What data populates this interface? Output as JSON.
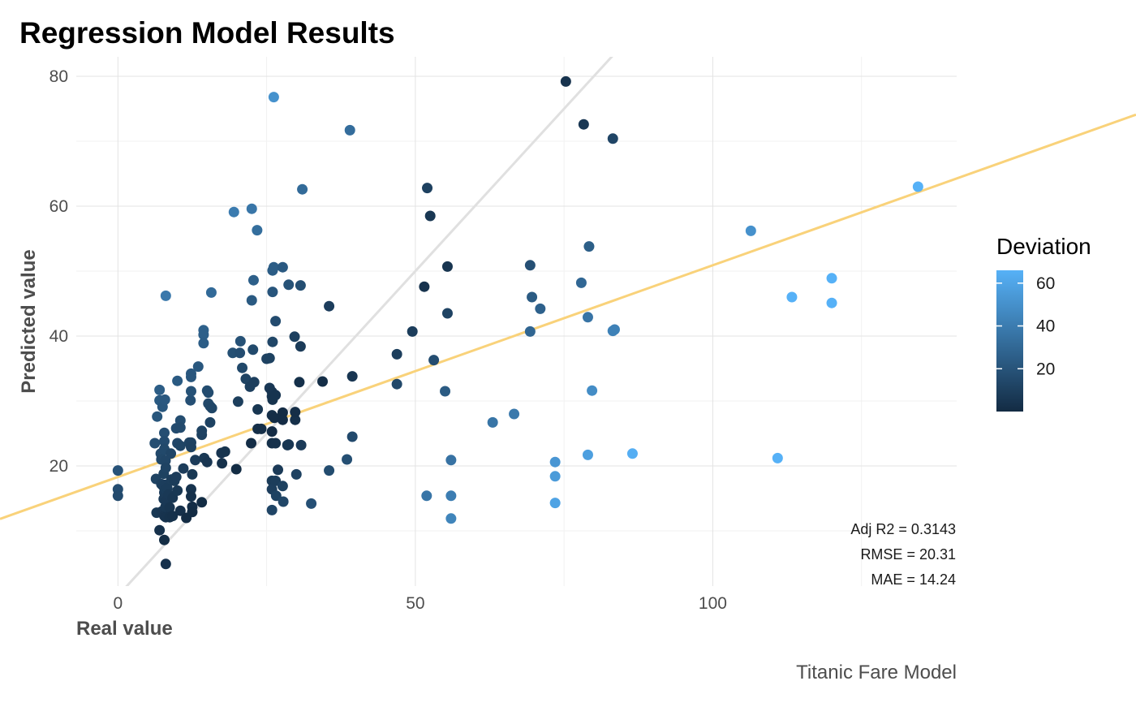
{
  "chart_data": {
    "type": "scatter",
    "title": "Regression Model Results",
    "xlabel": "Real value",
    "ylabel": "Predicted value",
    "caption": "Titanic Fare Model",
    "xlim": [
      -7,
      141
    ],
    "ylim": [
      1.5,
      83
    ],
    "x_ticks": [
      0,
      50,
      100
    ],
    "y_ticks": [
      20,
      40,
      60,
      80
    ],
    "x_tick_labels": [
      "0",
      "50",
      "100"
    ],
    "y_tick_labels": [
      "20",
      "40",
      "60",
      "80"
    ],
    "grid": true,
    "identity_line": {
      "slope": 1,
      "intercept": 0,
      "color": "#e0e0e0"
    },
    "fit_line": {
      "slope": 0.326,
      "intercept": 18.3,
      "color": "#f9d27a"
    },
    "metrics": [
      "Adj R2 =  0.3143",
      "RMSE = 20.31",
      "MAE = 14.24"
    ],
    "legend": {
      "title": "Deviation",
      "position": "right",
      "color_low": "#132b43",
      "color_high": "#56b1f7",
      "range": [
        0,
        66
      ],
      "ticks": [
        20,
        40,
        60
      ],
      "tick_labels": [
        "20",
        "40",
        "60"
      ]
    },
    "points": [
      [
        0,
        19.3
      ],
      [
        0,
        16.4
      ],
      [
        0,
        15.4
      ],
      [
        6.2,
        23.5
      ],
      [
        6.4,
        18
      ],
      [
        6.5,
        12.8
      ],
      [
        6.6,
        27.6
      ],
      [
        7,
        31.7
      ],
      [
        7,
        30.1
      ],
      [
        7,
        10.1
      ],
      [
        7.2,
        21.9
      ],
      [
        7.3,
        21
      ],
      [
        7.3,
        17.2
      ],
      [
        7.4,
        13
      ],
      [
        7.5,
        29.1
      ],
      [
        7.6,
        16.9
      ],
      [
        7.7,
        14.9
      ],
      [
        7.7,
        18.8
      ],
      [
        7.8,
        25.1
      ],
      [
        7.8,
        23.8
      ],
      [
        7.8,
        22.6
      ],
      [
        7.8,
        15.9
      ],
      [
        7.8,
        12.3
      ],
      [
        7.8,
        8.6
      ],
      [
        7.9,
        30.2
      ],
      [
        8,
        20.8
      ],
      [
        8,
        17.1
      ],
      [
        8,
        15.4
      ],
      [
        8,
        13.7
      ],
      [
        8.05,
        46.2
      ],
      [
        8.05,
        19.7
      ],
      [
        8.05,
        16.4
      ],
      [
        8.05,
        12.1
      ],
      [
        8.05,
        4.9
      ],
      [
        8.1,
        14.6
      ],
      [
        8.3,
        16.6
      ],
      [
        8.5,
        15.6
      ],
      [
        8.7,
        13.6
      ],
      [
        8.7,
        12.1
      ],
      [
        8.9,
        21.9
      ],
      [
        9,
        17.9
      ],
      [
        9.2,
        15.1
      ],
      [
        9.2,
        12.3
      ],
      [
        9.5,
        17.7
      ],
      [
        9.8,
        25.8
      ],
      [
        9.8,
        18.3
      ],
      [
        10,
        33.1
      ],
      [
        10,
        23.5
      ],
      [
        10,
        16.2
      ],
      [
        10.5,
        13.1
      ],
      [
        10.5,
        27
      ],
      [
        10.5,
        25.9
      ],
      [
        10.5,
        23.1
      ],
      [
        11,
        19.6
      ],
      [
        11.5,
        12
      ],
      [
        12,
        23.6
      ],
      [
        12.2,
        30.1
      ],
      [
        12.3,
        34.2
      ],
      [
        12.3,
        33.7
      ],
      [
        12.3,
        31.5
      ],
      [
        12.3,
        23.6
      ],
      [
        12.3,
        22.9
      ],
      [
        12.3,
        16.4
      ],
      [
        12.3,
        15.3
      ],
      [
        12.5,
        18.7
      ],
      [
        12.5,
        13.7
      ],
      [
        12.5,
        12.9
      ],
      [
        13,
        20.9
      ],
      [
        13.5,
        35.3
      ],
      [
        14.1,
        24.8
      ],
      [
        14.1,
        25.4
      ],
      [
        14.1,
        14.4
      ],
      [
        14.4,
        40.9
      ],
      [
        14.4,
        40.2
      ],
      [
        14.4,
        38.9
      ],
      [
        14.5,
        21.2
      ],
      [
        15,
        31.6
      ],
      [
        15,
        20.6
      ],
      [
        15.2,
        31.3
      ],
      [
        15.2,
        29.6
      ],
      [
        15.5,
        29.2
      ],
      [
        15.5,
        26.7
      ],
      [
        15.7,
        46.7
      ],
      [
        15.8,
        28.9
      ],
      [
        17.4,
        22
      ],
      [
        17.5,
        20.4
      ],
      [
        18,
        22.2
      ],
      [
        19.3,
        37.4
      ],
      [
        19.5,
        59.1
      ],
      [
        19.9,
        19.5
      ],
      [
        20.2,
        29.9
      ],
      [
        20.5,
        37.4
      ],
      [
        20.6,
        39.2
      ],
      [
        20.9,
        35.1
      ],
      [
        21.5,
        33.4
      ],
      [
        22.2,
        32.2
      ],
      [
        22.4,
        23.5
      ],
      [
        22.5,
        59.6
      ],
      [
        22.5,
        45.5
      ],
      [
        22.7,
        37.9
      ],
      [
        22.8,
        48.6
      ],
      [
        22.9,
        32.9
      ],
      [
        23.4,
        56.3
      ],
      [
        23.5,
        25.7
      ],
      [
        23.5,
        28.7
      ],
      [
        24.1,
        25.7
      ],
      [
        25,
        36.5
      ],
      [
        25.5,
        36.6
      ],
      [
        25.5,
        32
      ],
      [
        25.9,
        31.4
      ],
      [
        25.9,
        30.7
      ],
      [
        25.9,
        27.8
      ],
      [
        25.9,
        25.3
      ],
      [
        25.9,
        23.5
      ],
      [
        25.9,
        17.7
      ],
      [
        25.9,
        16.4
      ],
      [
        25.9,
        13.2
      ],
      [
        26,
        50.1
      ],
      [
        26,
        46.8
      ],
      [
        26,
        39.1
      ],
      [
        26,
        30.2
      ],
      [
        26.2,
        76.8
      ],
      [
        26.2,
        50.6
      ],
      [
        26.3,
        27.4
      ],
      [
        26.5,
        42.3
      ],
      [
        26.5,
        30.9
      ],
      [
        26.5,
        23.5
      ],
      [
        26.5,
        17.7
      ],
      [
        26.6,
        15.4
      ],
      [
        26.9,
        19.4
      ],
      [
        27.7,
        50.6
      ],
      [
        27.7,
        28.2
      ],
      [
        27.7,
        27.1
      ],
      [
        27.7,
        16.9
      ],
      [
        27.8,
        14.5
      ],
      [
        28.5,
        23.2
      ],
      [
        28.7,
        47.9
      ],
      [
        28.7,
        23.3
      ],
      [
        29.7,
        39.9
      ],
      [
        29.8,
        27.1
      ],
      [
        29.8,
        28.3
      ],
      [
        30,
        18.7
      ],
      [
        30.5,
        32.9
      ],
      [
        30.7,
        47.8
      ],
      [
        30.7,
        38.4
      ],
      [
        30.8,
        23.2
      ],
      [
        31,
        62.6
      ],
      [
        32.5,
        14.2
      ],
      [
        34.4,
        33
      ],
      [
        35.5,
        44.6
      ],
      [
        35.5,
        19.3
      ],
      [
        38.5,
        21
      ],
      [
        39,
        71.7
      ],
      [
        39.4,
        33.8
      ],
      [
        39.4,
        24.5
      ],
      [
        46.9,
        37.2
      ],
      [
        46.9,
        32.6
      ],
      [
        49.5,
        40.7
      ],
      [
        51.5,
        47.6
      ],
      [
        51.9,
        15.4
      ],
      [
        52,
        62.8
      ],
      [
        52.5,
        58.5
      ],
      [
        53.1,
        36.3
      ],
      [
        55,
        31.5
      ],
      [
        55.4,
        50.7
      ],
      [
        55.4,
        43.5
      ],
      [
        56,
        20.9
      ],
      [
        56,
        15.4
      ],
      [
        56,
        11.9
      ],
      [
        63,
        26.7
      ],
      [
        66.6,
        28
      ],
      [
        69.3,
        50.9
      ],
      [
        69.3,
        40.7
      ],
      [
        69.6,
        46
      ],
      [
        71,
        44.2
      ],
      [
        73.5,
        20.6
      ],
      [
        73.5,
        18.4
      ],
      [
        73.5,
        14.3
      ],
      [
        75.3,
        79.2
      ],
      [
        77.9,
        48.2
      ],
      [
        78.3,
        72.6
      ],
      [
        79,
        42.9
      ],
      [
        79,
        21.7
      ],
      [
        79.2,
        53.8
      ],
      [
        79.7,
        31.6
      ],
      [
        83.2,
        70.4
      ],
      [
        83.2,
        40.8
      ],
      [
        83.5,
        41
      ],
      [
        86.5,
        21.9
      ],
      [
        106.4,
        56.2
      ],
      [
        110.9,
        21.2
      ],
      [
        113.3,
        46
      ],
      [
        120,
        48.9
      ],
      [
        120,
        45.1
      ],
      [
        134.5,
        63
      ]
    ]
  }
}
